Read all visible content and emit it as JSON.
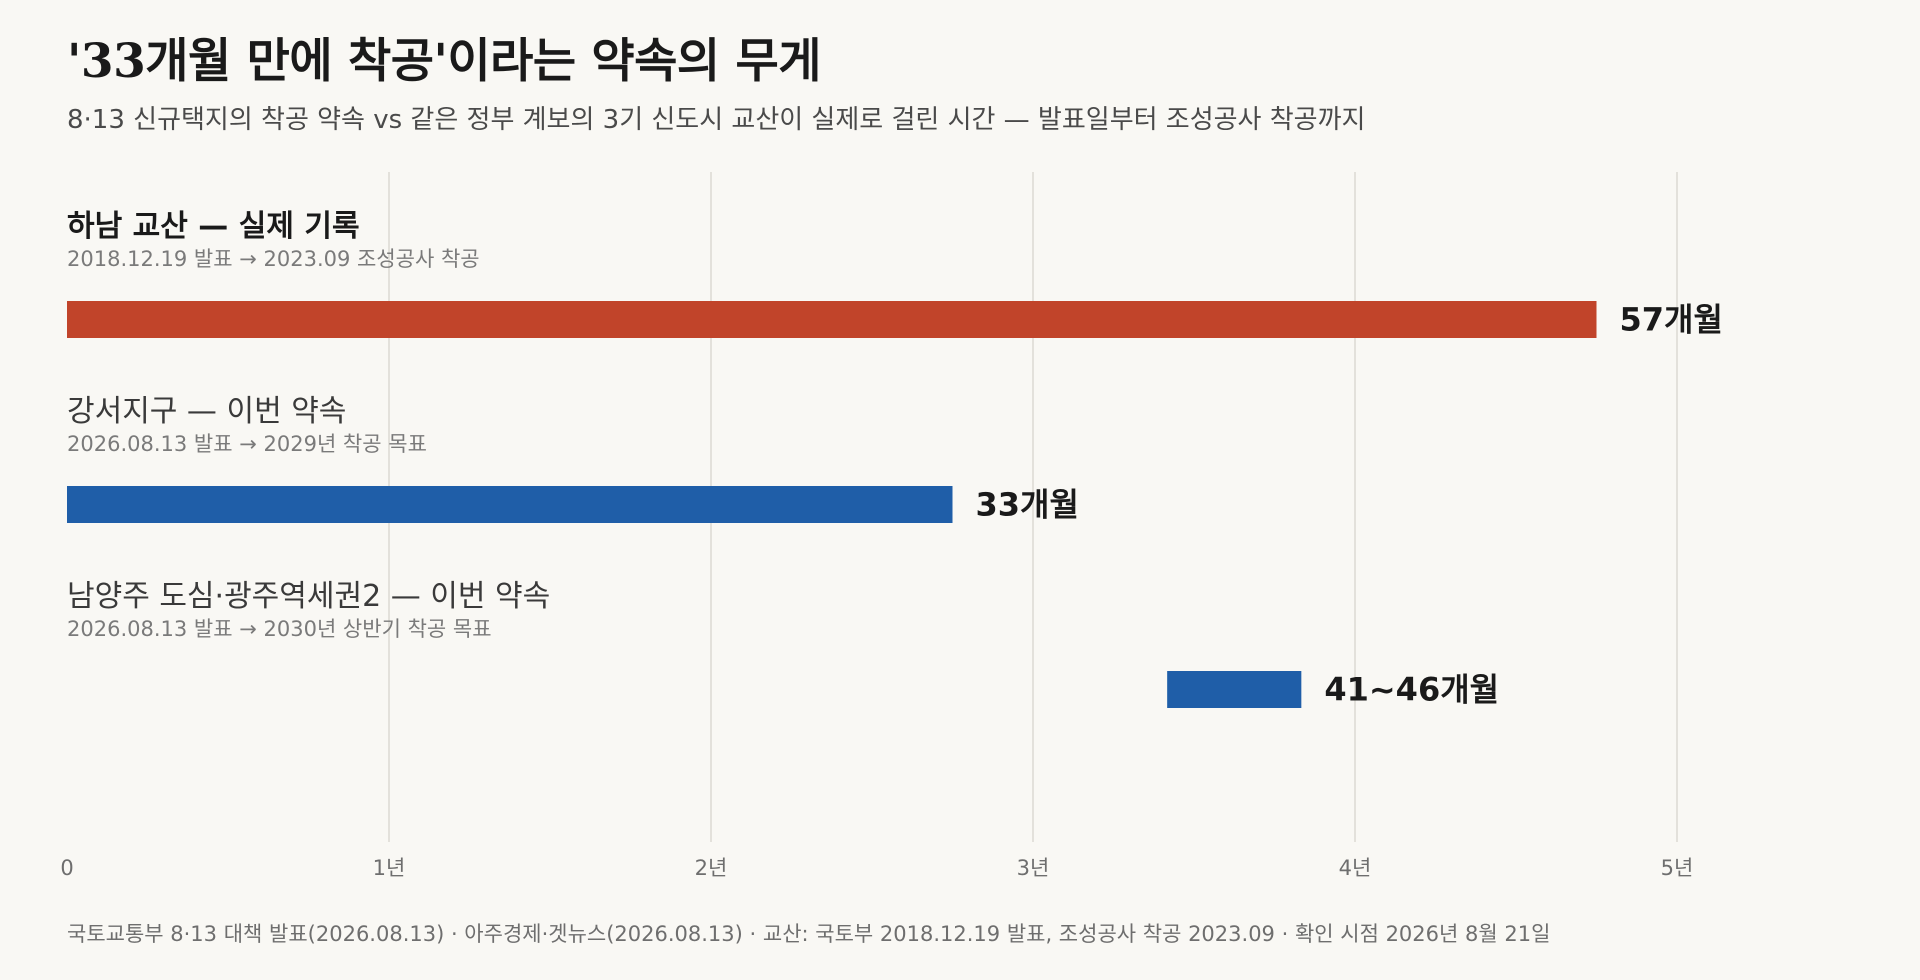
{
  "header": {
    "title": "'33개월 만에 착공'이라는 약속의 무게",
    "subtitle": "8·13 신규택지의 착공 약속 vs 같은 정부 계보의 3기 신도시 교산이 실제로 걸린 시간 — 발표일부터 조성공사 착공까지"
  },
  "chart_data": {
    "type": "bar",
    "orientation": "horizontal",
    "x_unit": "months",
    "xlim": [
      0,
      60
    ],
    "ticks": [
      {
        "value": 0,
        "label": "0"
      },
      {
        "value": 12,
        "label": "1년"
      },
      {
        "value": 24,
        "label": "2년"
      },
      {
        "value": 36,
        "label": "3년"
      },
      {
        "value": 48,
        "label": "4년"
      },
      {
        "value": 60,
        "label": "5년"
      }
    ],
    "grid": true,
    "series": [
      {
        "label": "하남 교산 — 실제 기록",
        "detail": "2018.12.19 발표 → 2023.09 조성공사 착공",
        "start": 0,
        "end": 57,
        "value_label": "57개월",
        "color": "#c1442a",
        "bold": true
      },
      {
        "label": "강서지구 — 이번 약속",
        "detail": "2026.08.13 발표 → 2029년 착공 목표",
        "start": 0,
        "end": 33,
        "value_label": "33개월",
        "color": "#1f5ea8",
        "bold": false
      },
      {
        "label": "남양주 도심·광주역세권2 — 이번 약속",
        "detail": "2026.08.13 발표 → 2030년 상반기 착공 목표",
        "start": 41,
        "end": 46,
        "value_label": "41~46개월",
        "color": "#1f5ea8",
        "bold": false
      }
    ]
  },
  "footer": {
    "source": "국토교통부 8·13 대책 발표(2026.08.13) · 아주경제·겟뉴스(2026.08.13) · 교산: 국토부 2018.12.19 발표, 조성공사 착공 2023.09 · 확인 시점 2026년 8월 21일"
  }
}
